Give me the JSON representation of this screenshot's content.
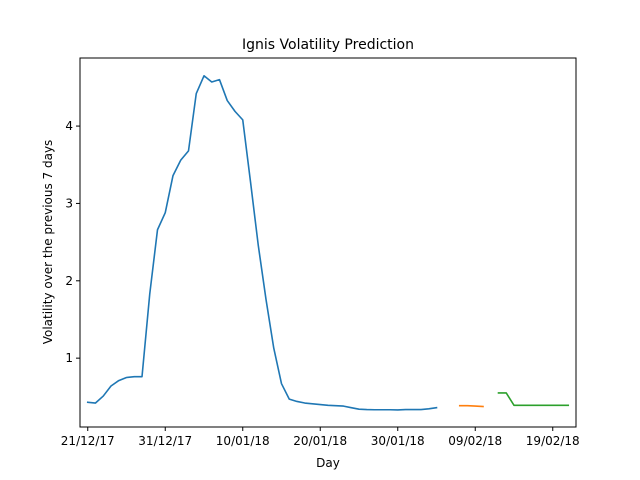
{
  "chart_data": {
    "type": "line",
    "title": "Ignis Volatility Prediction",
    "xlabel": "Day",
    "ylabel": "Volatility over the previous 7 days",
    "xlim": [
      "2017-12-20",
      "2018-02-22"
    ],
    "ylim": [
      0.11,
      4.88
    ],
    "x_ticks": [
      {
        "date": "2017-12-21",
        "label": "21/12/17"
      },
      {
        "date": "2017-12-31",
        "label": "31/12/17"
      },
      {
        "date": "2018-01-10",
        "label": "10/01/18"
      },
      {
        "date": "2018-01-20",
        "label": "20/01/18"
      },
      {
        "date": "2018-01-30",
        "label": "30/01/18"
      },
      {
        "date": "2018-02-09",
        "label": "09/02/18"
      },
      {
        "date": "2018-02-19",
        "label": "19/02/18"
      }
    ],
    "y_ticks": [
      1,
      2,
      3,
      4
    ],
    "grid": false,
    "legend": "none",
    "series": [
      {
        "color": "#1f77b4",
        "points": [
          [
            "2017-12-21",
            0.43
          ],
          [
            "2017-12-22",
            0.42
          ],
          [
            "2017-12-23",
            0.51
          ],
          [
            "2017-12-24",
            0.64
          ],
          [
            "2017-12-25",
            0.71
          ],
          [
            "2017-12-26",
            0.75
          ],
          [
            "2017-12-27",
            0.76
          ],
          [
            "2017-12-28",
            0.76
          ],
          [
            "2017-12-29",
            1.83
          ],
          [
            "2017-12-30",
            2.66
          ],
          [
            "2017-12-31",
            2.88
          ],
          [
            "2018-01-01",
            3.36
          ],
          [
            "2018-01-02",
            3.56
          ],
          [
            "2018-01-03",
            3.68
          ],
          [
            "2018-01-04",
            4.42
          ],
          [
            "2018-01-05",
            4.65
          ],
          [
            "2018-01-06",
            4.57
          ],
          [
            "2018-01-07",
            4.6
          ],
          [
            "2018-01-08",
            4.33
          ],
          [
            "2018-01-09",
            4.19
          ],
          [
            "2018-01-10",
            4.08
          ],
          [
            "2018-01-11",
            3.28
          ],
          [
            "2018-01-12",
            2.46
          ],
          [
            "2018-01-13",
            1.76
          ],
          [
            "2018-01-14",
            1.13
          ],
          [
            "2018-01-15",
            0.67
          ],
          [
            "2018-01-16",
            0.47
          ],
          [
            "2018-01-17",
            0.44
          ],
          [
            "2018-01-18",
            0.42
          ],
          [
            "2018-01-19",
            0.41
          ],
          [
            "2018-01-20",
            0.4
          ],
          [
            "2018-01-21",
            0.39
          ],
          [
            "2018-01-22",
            0.385
          ],
          [
            "2018-01-23",
            0.38
          ],
          [
            "2018-01-24",
            0.36
          ],
          [
            "2018-01-25",
            0.34
          ],
          [
            "2018-01-26",
            0.335
          ],
          [
            "2018-01-27",
            0.333
          ],
          [
            "2018-01-28",
            0.333
          ],
          [
            "2018-01-29",
            0.333
          ],
          [
            "2018-01-30",
            0.33
          ],
          [
            "2018-01-31",
            0.335
          ],
          [
            "2018-02-01",
            0.335
          ],
          [
            "2018-02-02",
            0.335
          ],
          [
            "2018-02-03",
            0.345
          ],
          [
            "2018-02-04",
            0.36
          ]
        ]
      },
      {
        "color": "#ff7f0e",
        "points": [
          [
            "2018-02-07",
            0.385
          ],
          [
            "2018-02-08",
            0.385
          ],
          [
            "2018-02-09",
            0.38
          ],
          [
            "2018-02-10",
            0.375
          ]
        ]
      },
      {
        "color": "#2ca02c",
        "points": [
          [
            "2018-02-12",
            0.55
          ],
          [
            "2018-02-13",
            0.55
          ],
          [
            "2018-02-14",
            0.39
          ],
          [
            "2018-02-15",
            0.39
          ],
          [
            "2018-02-16",
            0.39
          ],
          [
            "2018-02-17",
            0.39
          ],
          [
            "2018-02-18",
            0.39
          ],
          [
            "2018-02-19",
            0.39
          ],
          [
            "2018-02-20",
            0.39
          ],
          [
            "2018-02-21",
            0.39
          ]
        ]
      }
    ]
  }
}
